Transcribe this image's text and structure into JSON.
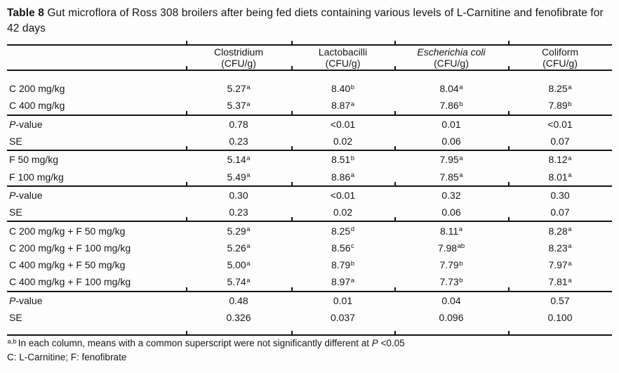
{
  "title": {
    "bold": "Table 8",
    "rest": " Gut microflora of Ross 308 broilers after being fed diets containing various levels of L-Carnitine and fenofibrate for 42 days"
  },
  "table": {
    "col1": {
      "name": "Clostridium",
      "unit": "(CFU/g)"
    },
    "col2": {
      "name": "Lactobacilli",
      "unit": "(CFU/g)"
    },
    "col3": {
      "name": "Escherichia coli",
      "unit": "(CFU/g)"
    },
    "col4": {
      "name": "Coliform",
      "unit": "(CFU/g)"
    },
    "rows": [
      {
        "label": "C 200 mg/kg",
        "v1": "5.27",
        "s1": "a",
        "v2": "8.40",
        "s2": "b",
        "v3": "8.04",
        "s3": "a",
        "v4": "8.25",
        "s4": "a"
      },
      {
        "label": "C 400 mg/kg",
        "v1": "5.37",
        "s1": "a",
        "v2": "8.87",
        "s2": "a",
        "v3": "7.86",
        "s3": "b",
        "v4": "7.89",
        "s4": "b"
      },
      {
        "label_i": "P",
        "label_r": "-value",
        "v1": "0.78",
        "v2": "<0.01",
        "v3": "0.01",
        "v4": "<0.01"
      },
      {
        "label": "SE",
        "v1": "0.23",
        "v2": "0.02",
        "v3": "0.06",
        "v4": "0.07"
      },
      {
        "label": "F 50 mg/kg",
        "v1": "5.14",
        "s1": "a",
        "v2": "8.51",
        "s2": "b",
        "v3": "7.95",
        "s3": "a",
        "v4": "8.12",
        "s4": "a"
      },
      {
        "label": "F 100 mg/kg",
        "v1": "5.49",
        "s1": "a",
        "v2": "8.86",
        "s2": "a",
        "v3": "7.85",
        "s3": "a",
        "v4": "8.01",
        "s4": "a"
      },
      {
        "label_i": "P",
        "label_r": "-value",
        "v1": "0.30",
        "v2": "<0.01",
        "v3": "0.32",
        "v4": "0.30"
      },
      {
        "label": "SE",
        "v1": "0.23",
        "v2": "0.02",
        "v3": "0.06",
        "v4": "0.07"
      },
      {
        "label": "C 200 mg/kg + F 50 mg/kg",
        "v1": "5.29",
        "s1": "a",
        "v2": "8.25",
        "s2": "d",
        "v3": "8.11",
        "s3": "a",
        "v4": "8.28",
        "s4": "a"
      },
      {
        "label": "C 200 mg/kg + F 100 mg/kg",
        "v1": "5.26",
        "s1": "a",
        "v2": "8.56",
        "s2": "c",
        "v3": "7.98",
        "s3": "ab",
        "v4": "8.23",
        "s4": "a"
      },
      {
        "label": "C 400 mg/kg + F 50 mg/kg",
        "v1": "5.00",
        "s1": "a",
        "v2": "8.79",
        "s2": "b",
        "v3": "7.79",
        "s3": "b",
        "v4": "7.97",
        "s4": "a"
      },
      {
        "label": "C 400 mg/kg + F 100 mg/kg",
        "v1": "5.74",
        "s1": "a",
        "v2": "8.97",
        "s2": "a",
        "v3": "7.73",
        "s3": "b",
        "v4": "7.81",
        "s4": "a"
      },
      {
        "label_i": "P",
        "label_r": "-value",
        "v1": "0.48",
        "v2": "0.01",
        "v3": "0.04",
        "v4": "0.57"
      },
      {
        "label": "SE",
        "v1": "0.326",
        "v2": "0.037",
        "v3": "0.096",
        "v4": "0.100"
      }
    ]
  },
  "footnotes": {
    "sup": "a,b",
    "line1_pre": "In each column, means with a common superscript were not significantly different at ",
    "line1_italic": "P",
    "line1_post": " <0.05",
    "line2": "C: L-Carnitine; F: fenofibrate"
  }
}
